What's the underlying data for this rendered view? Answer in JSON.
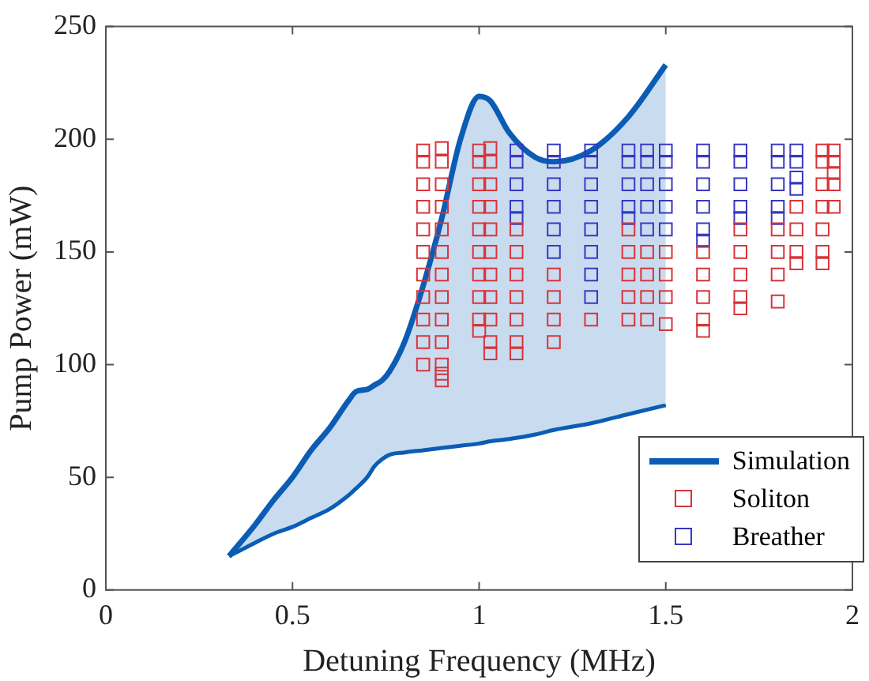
{
  "chart_data": {
    "type": "scatter",
    "xlabel": "Detuning Frequency (MHz)",
    "ylabel": "Pump Power (mW)",
    "xlim": [
      0,
      2
    ],
    "xticks": [
      0,
      0.5,
      1,
      1.5,
      2
    ],
    "ylim": [
      0,
      250
    ],
    "yticks": [
      0,
      50,
      100,
      150,
      200,
      250
    ],
    "grid": false,
    "legend": "bottom right",
    "series": [
      {
        "type": "line",
        "color": "#0b5cb5",
        "marker": "none",
        "x": [
          0.33,
          0.4,
          0.45,
          0.5,
          0.55,
          0.6,
          0.65,
          0.67,
          0.7,
          0.72,
          0.74,
          0.76,
          0.8,
          0.85,
          0.9,
          0.95,
          1.0,
          1.03,
          1.08,
          1.15,
          1.2,
          1.3,
          1.4,
          1.5
        ],
        "values": [
          15,
          21,
          25,
          28,
          32,
          36,
          42,
          45,
          50,
          55,
          58,
          60,
          61,
          62,
          63,
          64,
          65,
          66,
          67,
          69,
          71,
          74,
          78,
          82
        ]
      },
      {
        "name": "Simulation",
        "type": "line",
        "color": "#0b5cb5",
        "marker": "none",
        "x": [
          0.33,
          0.4,
          0.45,
          0.5,
          0.55,
          0.6,
          0.65,
          0.67,
          0.7,
          0.72,
          0.74,
          0.76,
          0.8,
          0.85,
          0.9,
          0.95,
          1.0,
          1.03,
          1.08,
          1.15,
          1.2,
          1.3,
          1.4,
          1.5
        ],
        "values": [
          15,
          29,
          40,
          50,
          62,
          72,
          84,
          88,
          89,
          91,
          93,
          97,
          110,
          135,
          165,
          200,
          219,
          217,
          203,
          192,
          190,
          195,
          210,
          233
        ],
        "lower": [
          15,
          21,
          25,
          28,
          32,
          36,
          42,
          45,
          50,
          55,
          58,
          60,
          61,
          62,
          63,
          64,
          65,
          66,
          67,
          69,
          71,
          74,
          78,
          82
        ],
        "upper": [
          15,
          29,
          40,
          50,
          62,
          72,
          84,
          88,
          89,
          91,
          93,
          97,
          110,
          135,
          165,
          200,
          219,
          217,
          203,
          192,
          190,
          195,
          210,
          233
        ]
      },
      {
        "name": "Soliton",
        "marker": "square",
        "color": "#d8343a",
        "x": [
          0.85,
          0.85,
          0.85,
          0.85,
          0.85,
          0.85,
          0.85,
          0.85,
          0.85,
          0.85,
          0.85,
          0.9,
          0.9,
          0.9,
          0.9,
          0.9,
          0.9,
          0.9,
          0.9,
          0.9,
          0.9,
          0.9,
          0.9,
          0.9,
          1.0,
          1.0,
          1.0,
          1.0,
          1.0,
          1.0,
          1.0,
          1.0,
          1.0,
          1.0,
          1.03,
          1.03,
          1.03,
          1.03,
          1.03,
          1.03,
          1.03,
          1.03,
          1.03,
          1.03,
          1.03,
          1.1,
          1.1,
          1.1,
          1.1,
          1.1,
          1.1,
          1.1,
          1.2,
          1.2,
          1.2,
          1.2,
          1.3,
          1.4,
          1.4,
          1.4,
          1.4,
          1.4,
          1.45,
          1.45,
          1.45,
          1.45,
          1.5,
          1.5,
          1.5,
          1.5,
          1.6,
          1.6,
          1.6,
          1.6,
          1.6,
          1.7,
          1.7,
          1.7,
          1.7,
          1.7,
          1.8,
          1.8,
          1.8,
          1.8,
          1.85,
          1.85,
          1.85,
          1.85,
          1.92,
          1.92,
          1.92,
          1.92,
          1.92,
          1.92,
          1.92,
          1.95,
          1.95,
          1.95,
          1.95,
          1.95
        ],
        "values": [
          195,
          190,
          180,
          170,
          160,
          150,
          140,
          130,
          120,
          110,
          100,
          196,
          190,
          180,
          170,
          160,
          150,
          140,
          130,
          120,
          110,
          100,
          96,
          93,
          195,
          190,
          180,
          170,
          160,
          150,
          140,
          130,
          120,
          115,
          196,
          190,
          180,
          170,
          160,
          150,
          140,
          130,
          120,
          110,
          105,
          160,
          150,
          140,
          130,
          120,
          110,
          105,
          140,
          130,
          120,
          110,
          120,
          160,
          150,
          140,
          130,
          120,
          150,
          140,
          130,
          120,
          150,
          140,
          130,
          118,
          150,
          140,
          130,
          120,
          115,
          160,
          150,
          140,
          130,
          125,
          160,
          150,
          140,
          128,
          170,
          160,
          150,
          145,
          195,
          190,
          180,
          170,
          160,
          150,
          145,
          195,
          190,
          185,
          180,
          170
        ]
      },
      {
        "name": "Breather",
        "marker": "square",
        "color": "#3838c0",
        "x": [
          1.1,
          1.1,
          1.1,
          1.1,
          1.1,
          1.2,
          1.2,
          1.2,
          1.2,
          1.2,
          1.2,
          1.3,
          1.3,
          1.3,
          1.3,
          1.3,
          1.3,
          1.3,
          1.3,
          1.4,
          1.4,
          1.4,
          1.4,
          1.4,
          1.45,
          1.45,
          1.45,
          1.45,
          1.45,
          1.5,
          1.5,
          1.5,
          1.5,
          1.5,
          1.6,
          1.6,
          1.6,
          1.6,
          1.6,
          1.6,
          1.7,
          1.7,
          1.7,
          1.7,
          1.7,
          1.8,
          1.8,
          1.8,
          1.8,
          1.8,
          1.85,
          1.85,
          1.85,
          1.85
        ],
        "values": [
          195,
          190,
          180,
          170,
          165,
          195,
          190,
          180,
          170,
          160,
          150,
          195,
          190,
          180,
          170,
          160,
          150,
          140,
          130,
          195,
          190,
          180,
          170,
          165,
          195,
          190,
          180,
          170,
          160,
          195,
          190,
          180,
          170,
          160,
          195,
          190,
          180,
          170,
          160,
          155,
          195,
          190,
          180,
          170,
          165,
          195,
          190,
          180,
          170,
          165,
          195,
          190,
          183,
          178
        ]
      }
    ]
  }
}
